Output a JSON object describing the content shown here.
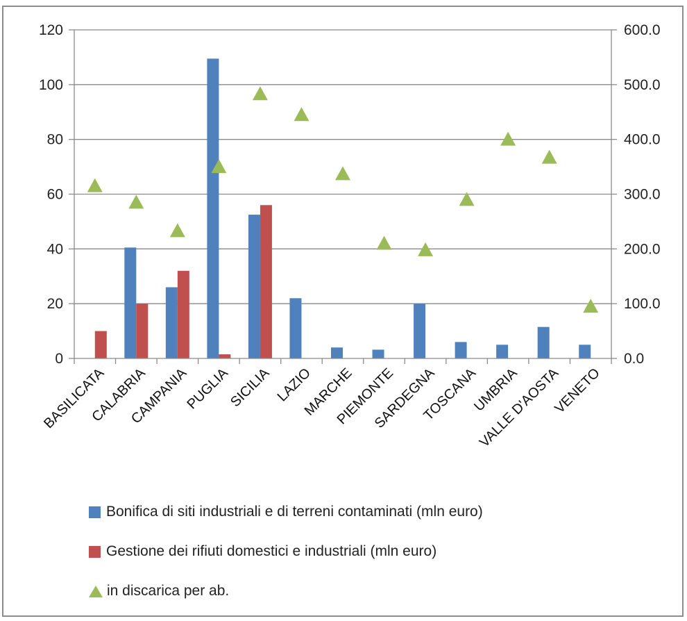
{
  "chart_data": {
    "type": "bar",
    "categories": [
      "BASILICATA",
      "CALABRIA",
      "CAMPANIA",
      "PUGLIA",
      "SICILIA",
      "LAZIO",
      "MARCHE",
      "PIEMONTE",
      "SARDEGNA",
      "TOSCANA",
      "UMBRIA",
      "VALLE D'AOSTA",
      "VENETO"
    ],
    "series": [
      {
        "name": "Bonifica di siti industriali e di terreni contaminati (mln euro)",
        "type": "bar",
        "axis": "left",
        "color": "#4f81bd",
        "values": [
          0,
          40.5,
          26,
          109.5,
          52.5,
          22,
          4,
          3.2,
          20,
          6,
          5,
          11.5,
          5
        ]
      },
      {
        "name": "Gestione dei rifiuti domestici e industriali (mln euro)",
        "type": "bar",
        "axis": "left",
        "color": "#c0504d",
        "values": [
          10,
          20,
          32,
          1.5,
          56,
          0,
          0,
          0,
          0,
          0,
          0,
          0,
          0
        ]
      },
      {
        "name": "in discarica per ab.",
        "type": "scatter",
        "marker": "triangle",
        "axis": "right",
        "color": "#9bbb59",
        "values": [
          315,
          285,
          233,
          350,
          483,
          445,
          337,
          210,
          198,
          290,
          400,
          367,
          95
        ]
      }
    ],
    "y_left": {
      "min": 0,
      "max": 120,
      "ticks": [
        "0",
        "20",
        "40",
        "60",
        "80",
        "100",
        "120"
      ]
    },
    "y_right": {
      "min": 0,
      "max": 600,
      "ticks": [
        "0.0",
        "100.0",
        "200.0",
        "300.0",
        "400.0",
        "500.0",
        "600.0"
      ]
    },
    "grid": true,
    "legend_position": "bottom"
  }
}
